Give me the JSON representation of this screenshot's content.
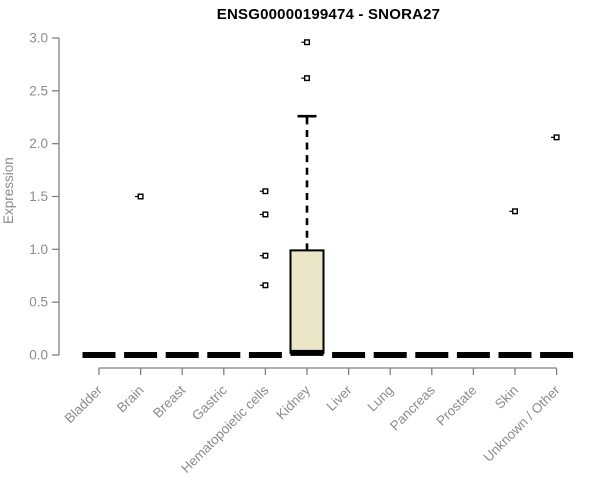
{
  "chart_data": {
    "type": "boxplot",
    "title": "ENSG00000199474 - SNORA27",
    "xlabel": "",
    "ylabel": "Expression",
    "ylim": [
      0.0,
      3.0
    ],
    "yticks": [
      "0.0",
      "0.5",
      "1.0",
      "1.5",
      "2.0",
      "2.5",
      "3.0"
    ],
    "grid": false,
    "legend": "none",
    "categories": [
      "Bladder",
      "Brain",
      "Breast",
      "Gastric",
      "Hematopoietic cells",
      "Kidney",
      "Liver",
      "Lung",
      "Pancreas",
      "Prostate",
      "Skin",
      "Unknown / Other"
    ],
    "boxes": [
      {
        "category": "Bladder",
        "q1": 0,
        "median": 0,
        "q3": 0,
        "whisker_low": 0,
        "whisker_high": 0,
        "outliers": []
      },
      {
        "category": "Brain",
        "q1": 0,
        "median": 0,
        "q3": 0,
        "whisker_low": 0,
        "whisker_high": 0,
        "outliers": [
          1.5
        ]
      },
      {
        "category": "Breast",
        "q1": 0,
        "median": 0,
        "q3": 0,
        "whisker_low": 0,
        "whisker_high": 0,
        "outliers": []
      },
      {
        "category": "Gastric",
        "q1": 0,
        "median": 0,
        "q3": 0,
        "whisker_low": 0,
        "whisker_high": 0,
        "outliers": []
      },
      {
        "category": "Hematopoietic cells",
        "q1": 0,
        "median": 0,
        "q3": 0,
        "whisker_low": 0,
        "whisker_high": 0,
        "outliers": [
          0.66,
          0.94,
          1.33,
          1.55
        ]
      },
      {
        "category": "Kidney",
        "q1": 0.02,
        "median": 0.02,
        "q3": 0.99,
        "whisker_low": 0.02,
        "whisker_high": 2.26,
        "outliers": [
          2.62,
          2.96
        ]
      },
      {
        "category": "Liver",
        "q1": 0,
        "median": 0,
        "q3": 0,
        "whisker_low": 0,
        "whisker_high": 0,
        "outliers": []
      },
      {
        "category": "Lung",
        "q1": 0,
        "median": 0,
        "q3": 0,
        "whisker_low": 0,
        "whisker_high": 0,
        "outliers": []
      },
      {
        "category": "Pancreas",
        "q1": 0,
        "median": 0,
        "q3": 0,
        "whisker_low": 0,
        "whisker_high": 0,
        "outliers": []
      },
      {
        "category": "Prostate",
        "q1": 0,
        "median": 0,
        "q3": 0,
        "whisker_low": 0,
        "whisker_high": 0,
        "outliers": []
      },
      {
        "category": "Skin",
        "q1": 0,
        "median": 0,
        "q3": 0,
        "whisker_low": 0,
        "whisker_high": 0,
        "outliers": [
          1.36
        ]
      },
      {
        "category": "Unknown / Other",
        "q1": 0,
        "median": 0,
        "q3": 0,
        "whisker_low": 0,
        "whisker_high": 0,
        "outliers": [
          2.06
        ]
      }
    ],
    "colors": {
      "background": "#FFFFFF",
      "box_fill": "#ECE6C9",
      "box_stroke": "#000000",
      "median_color": "#000000",
      "whisker_color": "#000000",
      "outlier_stroke": "#000000",
      "outlier_fill": "#FFFFFF",
      "axis_color": "#808080",
      "tick_label_color": "#8c8c8c",
      "title_color": "#000000"
    }
  }
}
